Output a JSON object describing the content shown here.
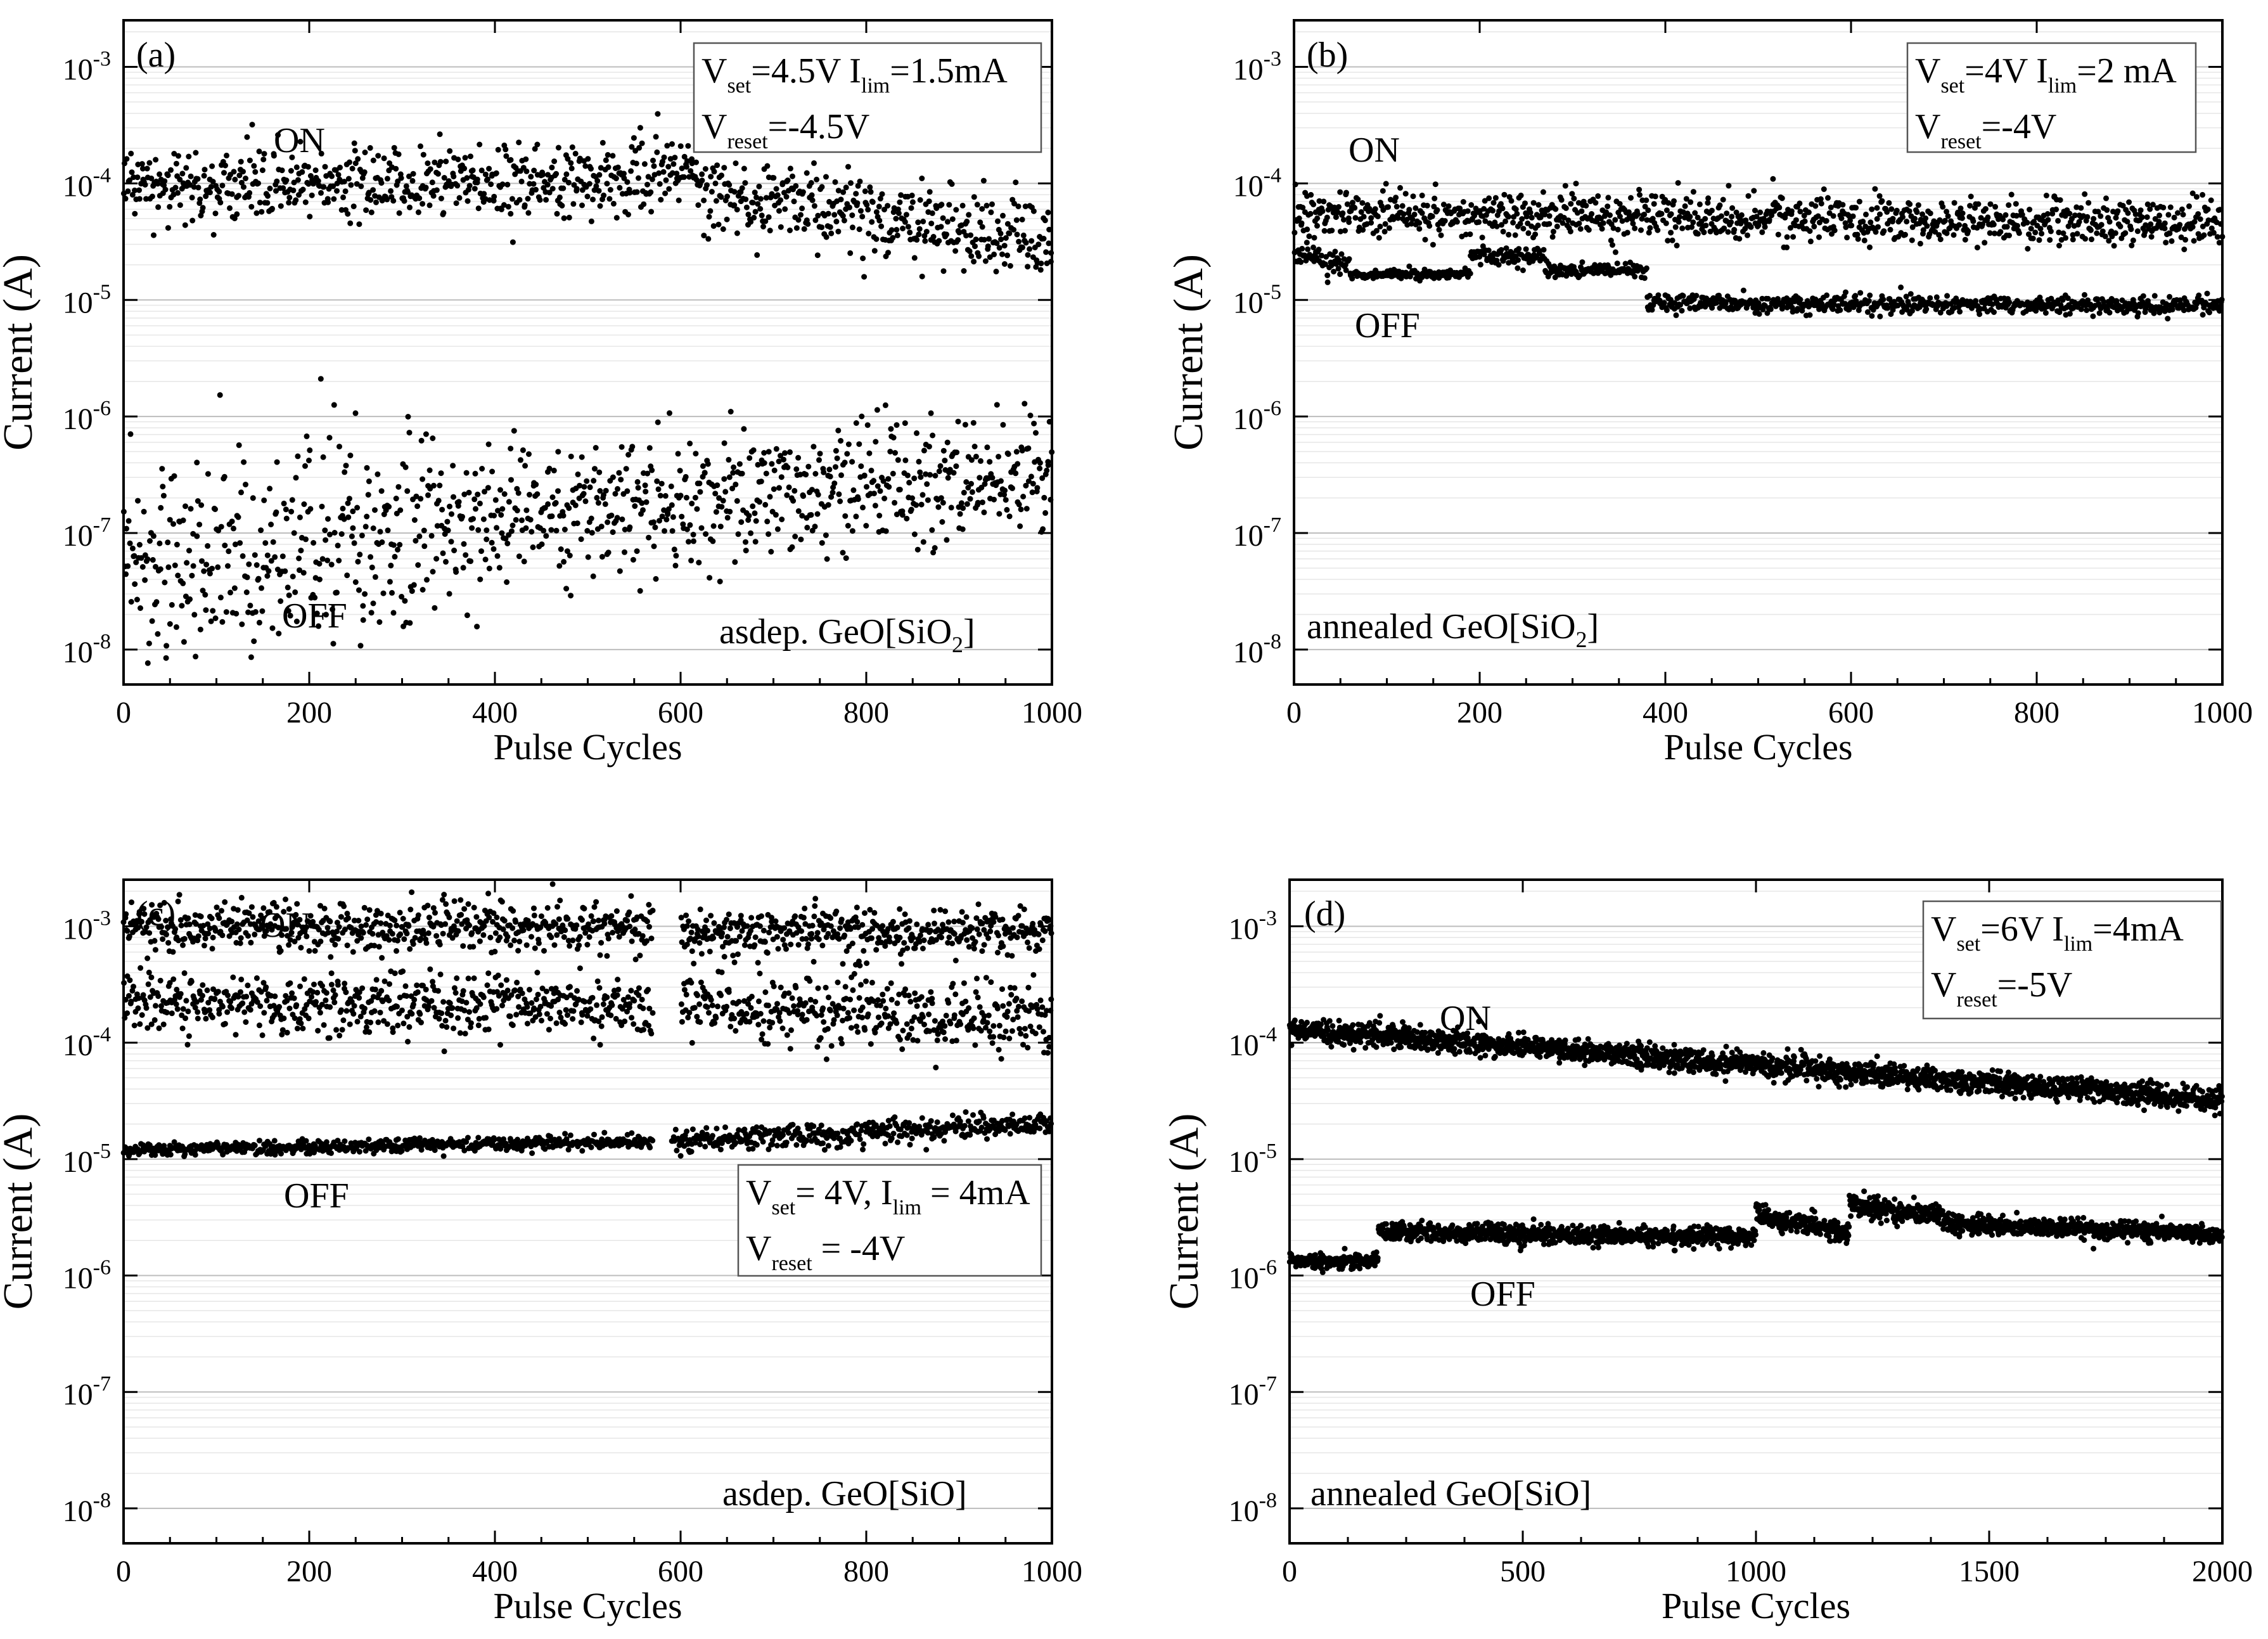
{
  "chart_data": [
    {
      "type": "scatter",
      "panel_label": "(a)",
      "xlabel": "Pulse Cycles",
      "ylabel": "Current (A)",
      "x_ticks": [
        "0",
        "200",
        "400",
        "600",
        "800",
        "1000"
      ],
      "xlim": [
        0,
        1000
      ],
      "ylim_log10": [
        -8.3,
        -2.6
      ],
      "y_ticks": [
        {
          "base": "10",
          "exp": "-8"
        },
        {
          "base": "10",
          "exp": "-7"
        },
        {
          "base": "10",
          "exp": "-6"
        },
        {
          "base": "10",
          "exp": "-5"
        },
        {
          "base": "10",
          "exp": "-4"
        },
        {
          "base": "10",
          "exp": "-3"
        }
      ],
      "grid": true,
      "state_labels": {
        "on": "ON",
        "off": "OFF"
      },
      "material": {
        "main": "asdep. GeO[SiO",
        "sub": "2",
        "close": "]"
      },
      "params": {
        "line1": [
          {
            "t": "V",
            "s": false
          },
          {
            "t": "set",
            "s": true
          },
          {
            "t": "=4.5V  I",
            "s": false
          },
          {
            "t": "lim",
            "s": true
          },
          {
            "t": "=1.5mA",
            "s": false
          }
        ],
        "line2": [
          {
            "t": "V",
            "s": false
          },
          {
            "t": "reset",
            "s": true
          },
          {
            "t": "=-4.5V",
            "s": false
          }
        ]
      },
      "n_points": 1000,
      "series": [
        {
          "name": "ON",
          "segments": [
            {
              "x0": 0,
              "x1": 580,
              "log_start": -4.05,
              "log_end": -3.95,
              "spread": 0.16
            },
            {
              "x0": 580,
              "x1": 620,
              "log_start": -3.85,
              "log_end": -3.95,
              "spread": 0.1
            },
            {
              "x0": 620,
              "x1": 1000,
              "log_start": -4.05,
              "log_end": -4.5,
              "spread": 0.17
            }
          ]
        },
        {
          "name": "OFF",
          "segments": [
            {
              "x0": 0,
              "x1": 360,
              "log_start": -7.3,
              "log_end": -6.95,
              "spread": 0.45
            },
            {
              "x0": 360,
              "x1": 1000,
              "log_start": -6.9,
              "log_end": -6.5,
              "spread": 0.28
            }
          ]
        }
      ]
    },
    {
      "type": "scatter",
      "panel_label": "(b)",
      "xlabel": "Pulse Cycles",
      "ylabel": "Current (A)",
      "x_ticks": [
        "0",
        "200",
        "400",
        "600",
        "800",
        "1000"
      ],
      "xlim": [
        0,
        1000
      ],
      "ylim_log10": [
        -8.3,
        -2.6
      ],
      "y_ticks": [
        {
          "base": "10",
          "exp": "-8"
        },
        {
          "base": "10",
          "exp": "-7"
        },
        {
          "base": "10",
          "exp": "-6"
        },
        {
          "base": "10",
          "exp": "-5"
        },
        {
          "base": "10",
          "exp": "-4"
        },
        {
          "base": "10",
          "exp": "-3"
        }
      ],
      "grid": true,
      "state_labels": {
        "on": "ON",
        "off": "OFF"
      },
      "material": {
        "main": "annealed GeO[SiO",
        "sub": "2",
        "close": "]"
      },
      "params": {
        "line1": [
          {
            "t": "V",
            "s": false
          },
          {
            "t": "set",
            "s": true
          },
          {
            "t": "=4V  I",
            "s": false
          },
          {
            "t": "lim",
            "s": true
          },
          {
            "t": "=2 mA",
            "s": false
          }
        ],
        "line2": [
          {
            "t": "V",
            "s": false
          },
          {
            "t": "reset",
            "s": true
          },
          {
            "t": "=-4V",
            "s": false
          }
        ]
      },
      "n_points": 1000,
      "series": [
        {
          "name": "ON",
          "segments": [
            {
              "x0": 0,
              "x1": 1000,
              "log_start": -4.25,
              "log_end": -4.35,
              "spread": 0.1
            }
          ]
        },
        {
          "name": "OFF",
          "segments": [
            {
              "x0": 0,
              "x1": 60,
              "log_start": -4.6,
              "log_end": -4.7,
              "spread": 0.05
            },
            {
              "x0": 60,
              "x1": 190,
              "log_start": -4.78,
              "log_end": -4.78,
              "spread": 0.02
            },
            {
              "x0": 190,
              "x1": 270,
              "log_start": -4.62,
              "log_end": -4.62,
              "spread": 0.04
            },
            {
              "x0": 270,
              "x1": 380,
              "log_start": -4.74,
              "log_end": -4.75,
              "spread": 0.03
            },
            {
              "x0": 380,
              "x1": 1000,
              "log_start": -5.03,
              "log_end": -5.05,
              "spread": 0.04
            }
          ]
        }
      ]
    },
    {
      "type": "scatter",
      "panel_label": "(c)",
      "xlabel": "Pulse Cycles",
      "ylabel": "Current (A)",
      "x_ticks": [
        "0",
        "200",
        "400",
        "600",
        "800",
        "1000"
      ],
      "xlim": [
        0,
        1000
      ],
      "ylim_log10": [
        -8.3,
        -2.6
      ],
      "y_ticks": [
        {
          "base": "10",
          "exp": "-8"
        },
        {
          "base": "10",
          "exp": "-7"
        },
        {
          "base": "10",
          "exp": "-6"
        },
        {
          "base": "10",
          "exp": "-5"
        },
        {
          "base": "10",
          "exp": "-4"
        },
        {
          "base": "10",
          "exp": "-3"
        }
      ],
      "grid": true,
      "state_labels": {
        "on": "ON",
        "off": "OFF"
      },
      "material": {
        "main": "asdep. GeO[SiO]",
        "sub": "",
        "close": ""
      },
      "params": {
        "line1": [
          {
            "t": "V",
            "s": false
          },
          {
            "t": "set",
            "s": true
          },
          {
            "t": "= 4V, I",
            "s": false
          },
          {
            "t": "lim",
            "s": true
          },
          {
            "t": " = 4mA",
            "s": false
          }
        ],
        "line2": [
          {
            "t": "V",
            "s": false
          },
          {
            "t": "reset",
            "s": true
          },
          {
            "t": " = -4V",
            "s": false
          }
        ]
      },
      "n_points": 1000,
      "series": [
        {
          "name": "ON",
          "segments": [
            {
              "x0": 0,
              "x1": 570,
              "log_start": -3.0,
              "log_end": -3.0,
              "spread": 0.1
            },
            {
              "x0": 0,
              "x1": 570,
              "log_start": -3.65,
              "log_end": -3.7,
              "spread": 0.12
            },
            {
              "x0": 600,
              "x1": 1000,
              "log_start": -3.05,
              "log_end": -3.05,
              "spread": 0.1
            },
            {
              "x0": 600,
              "x1": 1000,
              "log_start": -3.7,
              "log_end": -3.8,
              "spread": 0.15
            }
          ]
        },
        {
          "name": "OFF",
          "segments": [
            {
              "x0": 0,
              "x1": 570,
              "log_start": -4.92,
              "log_end": -4.85,
              "spread": 0.03
            },
            {
              "x0": 590,
              "x1": 1000,
              "log_start": -4.85,
              "log_end": -4.7,
              "spread": 0.05
            }
          ]
        }
      ]
    },
    {
      "type": "scatter",
      "panel_label": "(d)",
      "xlabel": "Pulse Cycles",
      "ylabel": "Current (A)",
      "x_ticks": [
        "0",
        "500",
        "1000",
        "1500",
        "2000"
      ],
      "xlim": [
        0,
        2000
      ],
      "ylim_log10": [
        -8.3,
        -2.6
      ],
      "y_ticks": [
        {
          "base": "10",
          "exp": "-8"
        },
        {
          "base": "10",
          "exp": "-7"
        },
        {
          "base": "10",
          "exp": "-6"
        },
        {
          "base": "10",
          "exp": "-5"
        },
        {
          "base": "10",
          "exp": "-4"
        },
        {
          "base": "10",
          "exp": "-3"
        }
      ],
      "grid": true,
      "state_labels": {
        "on": "ON",
        "off": "OFF"
      },
      "material": {
        "main": "annealed GeO[SiO]",
        "sub": "",
        "close": ""
      },
      "params": {
        "line1": [
          {
            "t": "V",
            "s": false
          },
          {
            "t": "set",
            "s": true
          },
          {
            "t": "=6V  I",
            "s": false
          },
          {
            "t": "lim",
            "s": true
          },
          {
            "t": "=4mA",
            "s": false
          }
        ],
        "line2": [
          {
            "t": "V",
            "s": false
          },
          {
            "t": "reset",
            "s": true
          },
          {
            "t": "=-5V",
            "s": false
          }
        ]
      },
      "n_points": 2000,
      "series": [
        {
          "name": "ON",
          "segments": [
            {
              "x0": 0,
              "x1": 2000,
              "log_start": -3.88,
              "log_end": -4.5,
              "spread": 0.05
            }
          ]
        },
        {
          "name": "OFF",
          "segments": [
            {
              "x0": 0,
              "x1": 190,
              "log_start": -5.88,
              "log_end": -5.88,
              "spread": 0.03
            },
            {
              "x0": 190,
              "x1": 1000,
              "log_start": -5.63,
              "log_end": -5.67,
              "spread": 0.04
            },
            {
              "x0": 1000,
              "x1": 1200,
              "log_start": -5.48,
              "log_end": -5.62,
              "spread": 0.05
            },
            {
              "x0": 1200,
              "x1": 1400,
              "log_start": -5.4,
              "log_end": -5.48,
              "spread": 0.05
            },
            {
              "x0": 1400,
              "x1": 2000,
              "log_start": -5.55,
              "log_end": -5.65,
              "spread": 0.04
            }
          ]
        }
      ]
    }
  ]
}
